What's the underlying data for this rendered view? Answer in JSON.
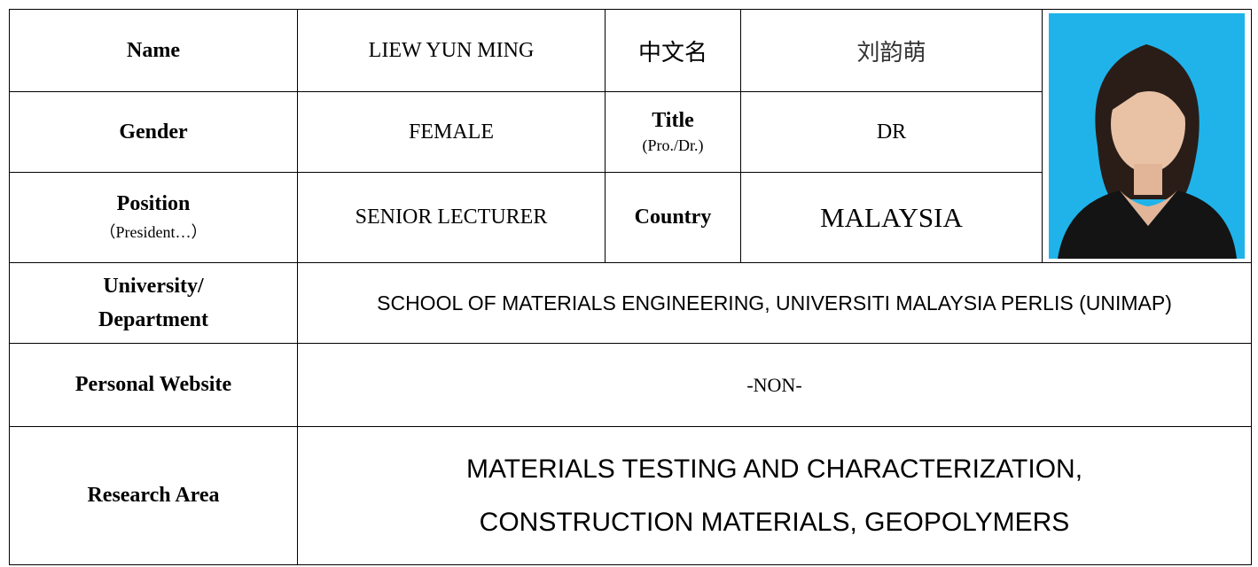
{
  "table": {
    "rows": [
      {
        "label": "Name",
        "value": "LIEW YUN MING",
        "label2": "中文名",
        "value2": "刘韵萌"
      },
      {
        "label": "Gender",
        "value": "FEMALE",
        "label2": "Title",
        "label2_note": "(Pro./Dr.)",
        "value2": "DR"
      },
      {
        "label": "Position",
        "label_note": "（President…）",
        "value": "SENIOR LECTURER",
        "label2": "Country",
        "value2": "MALAYSIA"
      },
      {
        "label": "University/ Department",
        "value": "SCHOOL OF MATERIALS ENGINEERING, UNIVERSITI MALAYSIA PERLIS (UNIMAP)"
      },
      {
        "label": "Personal Website",
        "value": "-NON-"
      },
      {
        "label": "Research Area",
        "value_lines": [
          "MATERIALS TESTING AND CHARACTERIZATION,",
          "CONSTRUCTION MATERIALS, GEOPOLYMERS"
        ]
      }
    ]
  }
}
